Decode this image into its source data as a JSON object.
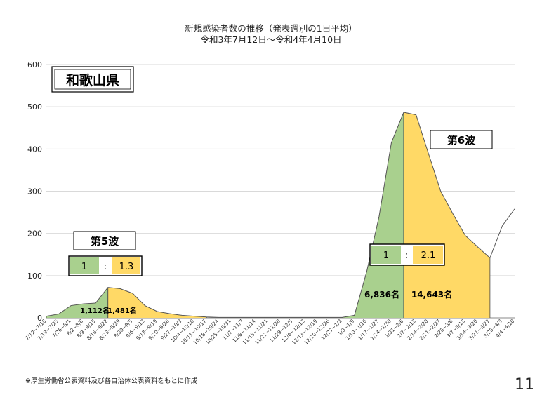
{
  "page": {
    "title_line1": "新規感染者数の推移（発表週別の1日平均）",
    "title_line2": "令和3年7月12日～令和4年4月10日",
    "footnote": "※厚生労働省公表資料及び各自治体公表資料をもとに作成",
    "page_number": "11"
  },
  "colors": {
    "green": "#a9d08e",
    "yellow": "#ffd966",
    "line": "#555555",
    "grid": "#d9d9d9"
  },
  "chart_data": {
    "type": "area",
    "title": "和歌山県",
    "xlabel": "",
    "ylabel": "",
    "ylim": [
      0,
      600
    ],
    "yticks": [
      0,
      100,
      200,
      300,
      400,
      500,
      600
    ],
    "grid": true,
    "categories": [
      "7/12~7/18",
      "7/19~7/25",
      "7/26~8/1",
      "8/2~8/8",
      "8/9~8/15",
      "8/16~8/22",
      "8/23~8/29",
      "8/30~9/5",
      "9/6~9/12",
      "9/13~9/19",
      "9/20~9/26",
      "9/27~10/3",
      "10/4~10/10",
      "10/11~10/17",
      "10/18~10/24",
      "10/25~10/31",
      "11/1~11/7",
      "11/8~11/14",
      "11/15~11/21",
      "11/22~11/28",
      "11/29~12/5",
      "12/6~12/12",
      "12/13~12/19",
      "12/20~12/26",
      "12/27~1/2",
      "1/3~1/9",
      "1/10~1/16",
      "1/17~1/23",
      "1/24~1/30",
      "1/31~2/6",
      "2/7~2/13",
      "2/14~2/20",
      "2/21~2/27",
      "2/28~3/6",
      "3/7~3/13",
      "3/14~3/20",
      "3/21~3/27",
      "3/28~4/3",
      "4/4~4/10"
    ],
    "values": [
      4,
      9,
      29,
      33,
      35,
      72,
      69,
      58,
      29,
      15,
      10,
      6,
      4,
      2,
      1,
      1,
      1,
      1,
      1,
      1,
      1,
      1,
      1,
      1,
      1,
      6,
      110,
      240,
      415,
      487,
      481,
      390,
      300,
      246,
      195,
      168,
      142,
      218,
      258
    ],
    "regions": [
      {
        "start": 0,
        "end": 5,
        "color": "green",
        "label": "1,112名"
      },
      {
        "start": 5,
        "end": 13,
        "color": "yellow",
        "label": "1,481名"
      },
      {
        "start": 24,
        "end": 29,
        "color": "green",
        "label": "6,836名"
      },
      {
        "start": 29,
        "end": 36,
        "color": "yellow",
        "label": "14,643名"
      }
    ],
    "annotations": [
      {
        "label": "第5波",
        "ratio_left": "1",
        "ratio_sep": ":",
        "ratio_right": "1.3"
      },
      {
        "label": "第6波",
        "ratio_left": "1",
        "ratio_sep": ":",
        "ratio_right": "2.1"
      }
    ]
  }
}
